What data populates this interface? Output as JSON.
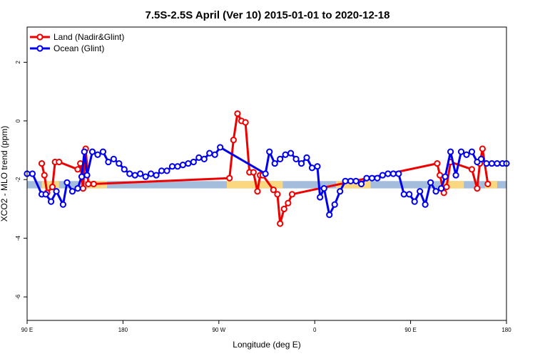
{
  "chart_data": {
    "type": "line",
    "title": "7.5S-2.5S April (Ver 10)   2015-01-01 to 2020-12-18",
    "xlabel": "Longitude (deg E)",
    "ylabel": "XCO2 - MLO trend (ppm)",
    "xlim": [
      90,
      450
    ],
    "ylim": [
      -6.8,
      3.2
    ],
    "x_ticks": [
      {
        "value": 90,
        "label": "90 E"
      },
      {
        "value": 162,
        "label": "180"
      },
      {
        "value": 234,
        "label": "90 W"
      },
      {
        "value": 306,
        "label": "0"
      },
      {
        "value": 378,
        "label": "90 E"
      },
      {
        "value": 450,
        "label": "180"
      }
    ],
    "y_ticks": [
      2,
      0,
      -2,
      -4,
      -6
    ],
    "legend_position": "top-left",
    "colors": {
      "land": "#ee0000",
      "ocean": "#0000ee",
      "band_ocean": "#a4bddc",
      "band_land": "#fbd77f"
    },
    "band": {
      "y_range": [
        -2.3,
        -2.05
      ],
      "land_segments": [
        [
          101,
          114
        ],
        [
          135,
          150
        ],
        [
          240,
          282
        ],
        [
          322,
          348
        ],
        [
          401,
          418
        ],
        [
          434,
          443
        ]
      ]
    },
    "series": [
      {
        "name": "Land (Nadir&Glint)",
        "key": "land",
        "x": [
          101,
          103,
          105,
          109,
          111,
          114,
          128,
          130,
          132,
          134,
          136,
          140,
          242,
          245,
          248,
          251,
          254,
          257,
          260,
          263,
          265,
          267,
          275,
          278,
          280,
          283,
          286,
          289,
          398,
          400,
          403,
          405,
          408,
          424,
          428,
          430,
          432,
          436
        ],
        "values": [
          -1.45,
          -1.85,
          -2.45,
          -2.25,
          -1.4,
          -1.4,
          -1.65,
          -1.45,
          -2.3,
          -0.95,
          -2.15,
          -2.15,
          -1.95,
          -0.65,
          0.25,
          0.0,
          -0.05,
          -1.75,
          -1.75,
          -2.4,
          -1.85,
          -1.85,
          -2.35,
          -2.5,
          -3.5,
          -3.0,
          -2.8,
          -2.5,
          -1.45,
          -1.85,
          -2.45,
          -2.25,
          -1.4,
          -1.65,
          -2.3,
          -1.45,
          -0.95,
          -2.15
        ]
      },
      {
        "name": "Ocean (Glint)",
        "key": "ocean",
        "x": [
          90,
          94,
          101,
          104,
          108,
          112,
          117,
          120,
          124,
          128,
          131,
          133,
          135,
          139,
          143,
          147,
          151,
          155,
          159,
          163,
          167,
          171,
          175,
          179,
          183,
          187,
          191,
          195,
          199,
          203,
          207,
          211,
          215,
          219,
          223,
          227,
          231,
          235,
          269,
          272,
          276,
          280,
          284,
          288,
          292,
          296,
          300,
          304,
          308,
          310,
          313,
          317,
          321,
          325,
          329,
          333,
          337,
          341,
          345,
          349,
          353,
          357,
          361,
          365,
          369,
          373,
          377,
          381,
          385,
          389,
          393,
          397,
          401,
          404,
          408,
          412,
          416,
          420,
          424,
          428,
          431,
          435,
          439,
          443,
          447,
          450
        ],
        "values": [
          -1.8,
          -1.8,
          -2.5,
          -2.5,
          -2.75,
          -2.4,
          -2.85,
          -2.1,
          -2.4,
          -2.3,
          -1.9,
          -1.05,
          -1.85,
          -1.05,
          -1.15,
          -1.05,
          -1.4,
          -1.3,
          -1.45,
          -1.65,
          -1.8,
          -1.85,
          -1.8,
          -1.9,
          -1.8,
          -1.85,
          -1.7,
          -1.7,
          -1.55,
          -1.55,
          -1.5,
          -1.45,
          -1.4,
          -1.25,
          -1.3,
          -1.1,
          -1.15,
          -0.9,
          -1.8,
          -1.05,
          -1.45,
          -1.3,
          -1.15,
          -1.1,
          -1.3,
          -1.45,
          -1.25,
          -1.6,
          -1.55,
          -2.6,
          -2.3,
          -3.2,
          -2.85,
          -2.4,
          -2.05,
          -2.05,
          -2.05,
          -2.15,
          -1.95,
          -1.95,
          -1.95,
          -1.85,
          -1.8,
          -1.8,
          -1.8,
          -2.5,
          -2.5,
          -2.75,
          -2.4,
          -2.85,
          -2.1,
          -2.4,
          -2.3,
          -1.9,
          -1.05,
          -1.85,
          -1.05,
          -1.15,
          -1.05,
          -1.4,
          -1.3,
          -1.45,
          -1.45,
          -1.45,
          -1.45,
          -1.45
        ]
      }
    ]
  }
}
